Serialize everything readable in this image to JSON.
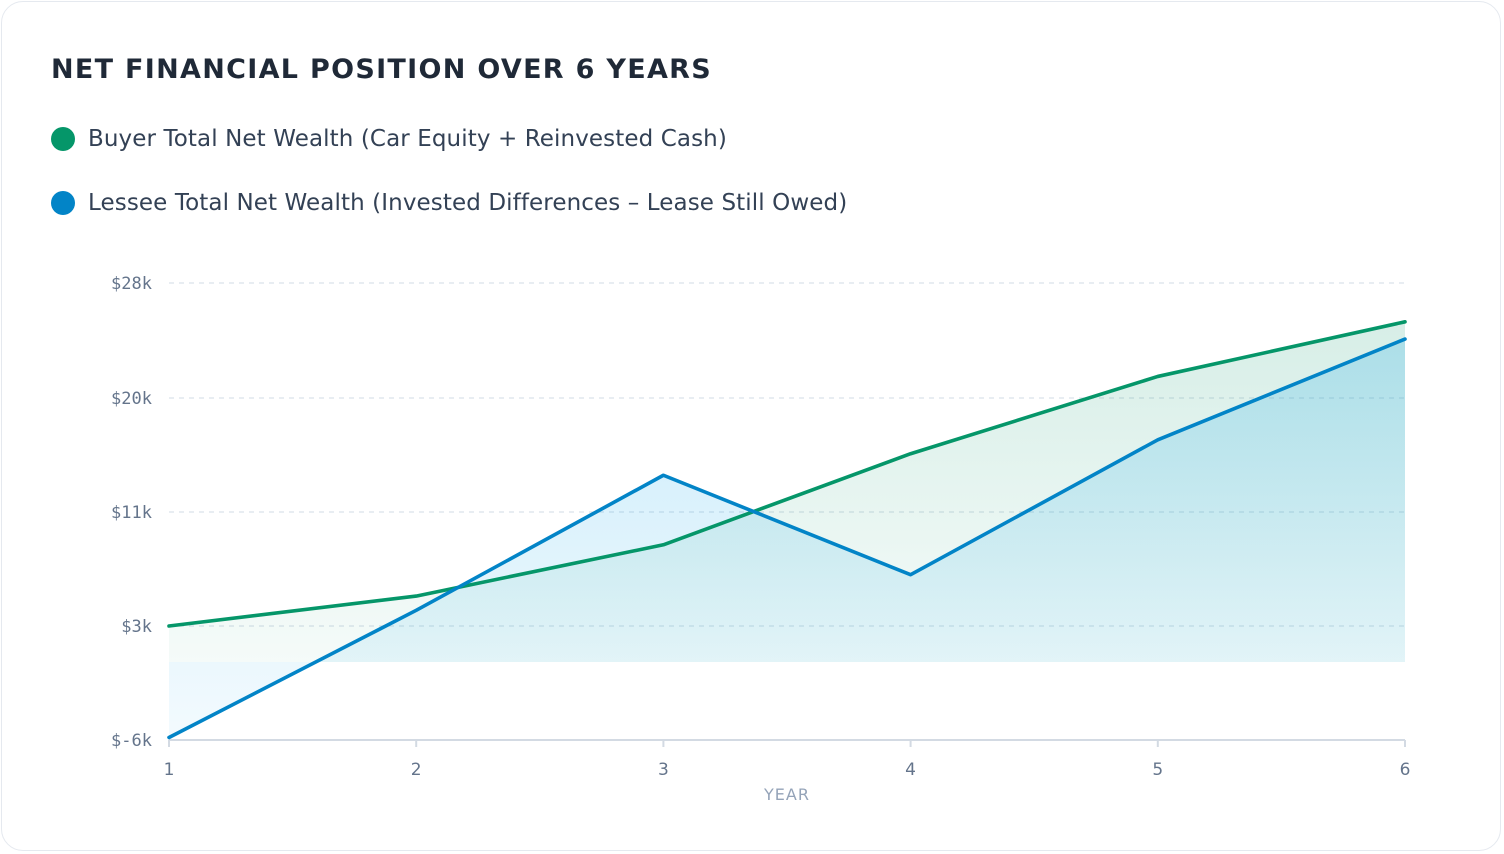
{
  "chart_data": {
    "type": "line",
    "title": "NET FINANCIAL POSITION OVER 6 YEARS",
    "xlabel": "YEAR",
    "ylabel": "",
    "x": [
      1,
      2,
      3,
      4,
      5,
      6
    ],
    "x_tick_labels": [
      "1",
      "2",
      "3",
      "4",
      "5",
      "6"
    ],
    "y_tick_values": [
      -6,
      3,
      11,
      20,
      28
    ],
    "y_tick_labels": [
      "$-6k",
      "$3k",
      "$11k",
      "$20k",
      "$28k"
    ],
    "ylim": [
      -6,
      28
    ],
    "grid": true,
    "legend_position": "top-left",
    "series": [
      {
        "name": "Buyer Total Net Wealth (Car Equity + Reinvested Cash)",
        "color": "#059669",
        "values": [
          3.0,
          5.1,
          8.7,
          15.6,
          21.5,
          25.3
        ]
      },
      {
        "name": "Lessee Total Net Wealth (Invested Differences – Lease Still Owed)",
        "color": "#0284c7",
        "values": [
          -5.8,
          4.1,
          13.9,
          6.6,
          16.7,
          24.1
        ]
      }
    ]
  }
}
